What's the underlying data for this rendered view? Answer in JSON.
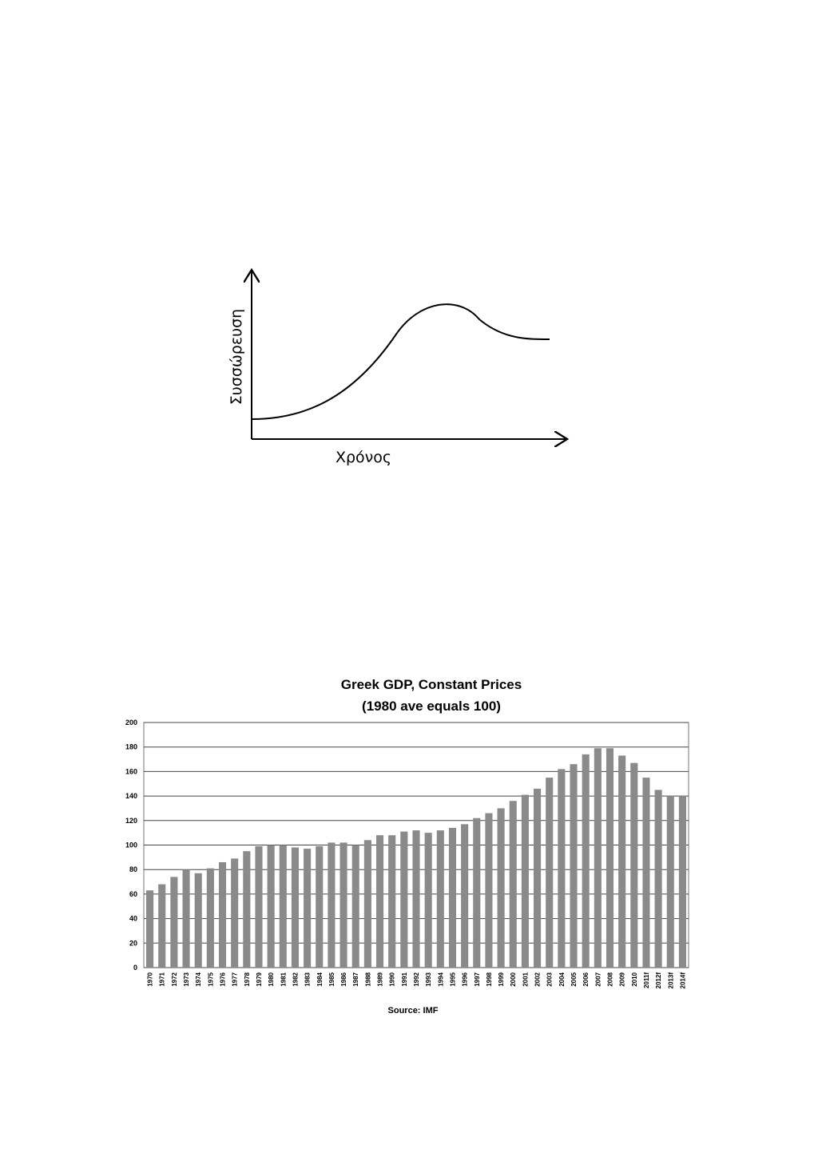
{
  "diagram": {
    "y_label": "Συσσώρευση",
    "x_label": "Χρόνος"
  },
  "chart_data": {
    "type": "bar",
    "title": "Greek GDP, Constant Prices",
    "subtitle": "(1980 ave equals 100)",
    "source": "Source: IMF",
    "categories": [
      "1970",
      "1971",
      "1972",
      "1973",
      "1974",
      "1975",
      "1976",
      "1977",
      "1978",
      "1979",
      "1980",
      "1981",
      "1982",
      "1983",
      "1984",
      "1985",
      "1986",
      "1987",
      "1988",
      "1989",
      "1990",
      "1991",
      "1992",
      "1993",
      "1994",
      "1995",
      "1996",
      "1997",
      "1998",
      "1999",
      "2000",
      "2001",
      "2002",
      "2003",
      "2004",
      "2005",
      "2006",
      "2007",
      "2008",
      "2009",
      "2010",
      "2011f",
      "2012f",
      "2013f",
      "2014f"
    ],
    "values": [
      63,
      68,
      74,
      80,
      77,
      81,
      86,
      89,
      95,
      99,
      100,
      100,
      98,
      97,
      99,
      102,
      102,
      100,
      104,
      108,
      108,
      111,
      112,
      110,
      112,
      114,
      117,
      122,
      126,
      130,
      136,
      141,
      146,
      155,
      162,
      166,
      174,
      179,
      179,
      173,
      167,
      155,
      145,
      140,
      140
    ],
    "color": "#8a8a8a",
    "ylim": [
      0,
      200
    ],
    "yticks": [
      0,
      20,
      40,
      60,
      80,
      100,
      120,
      140,
      160,
      180,
      200
    ],
    "grid": true
  }
}
